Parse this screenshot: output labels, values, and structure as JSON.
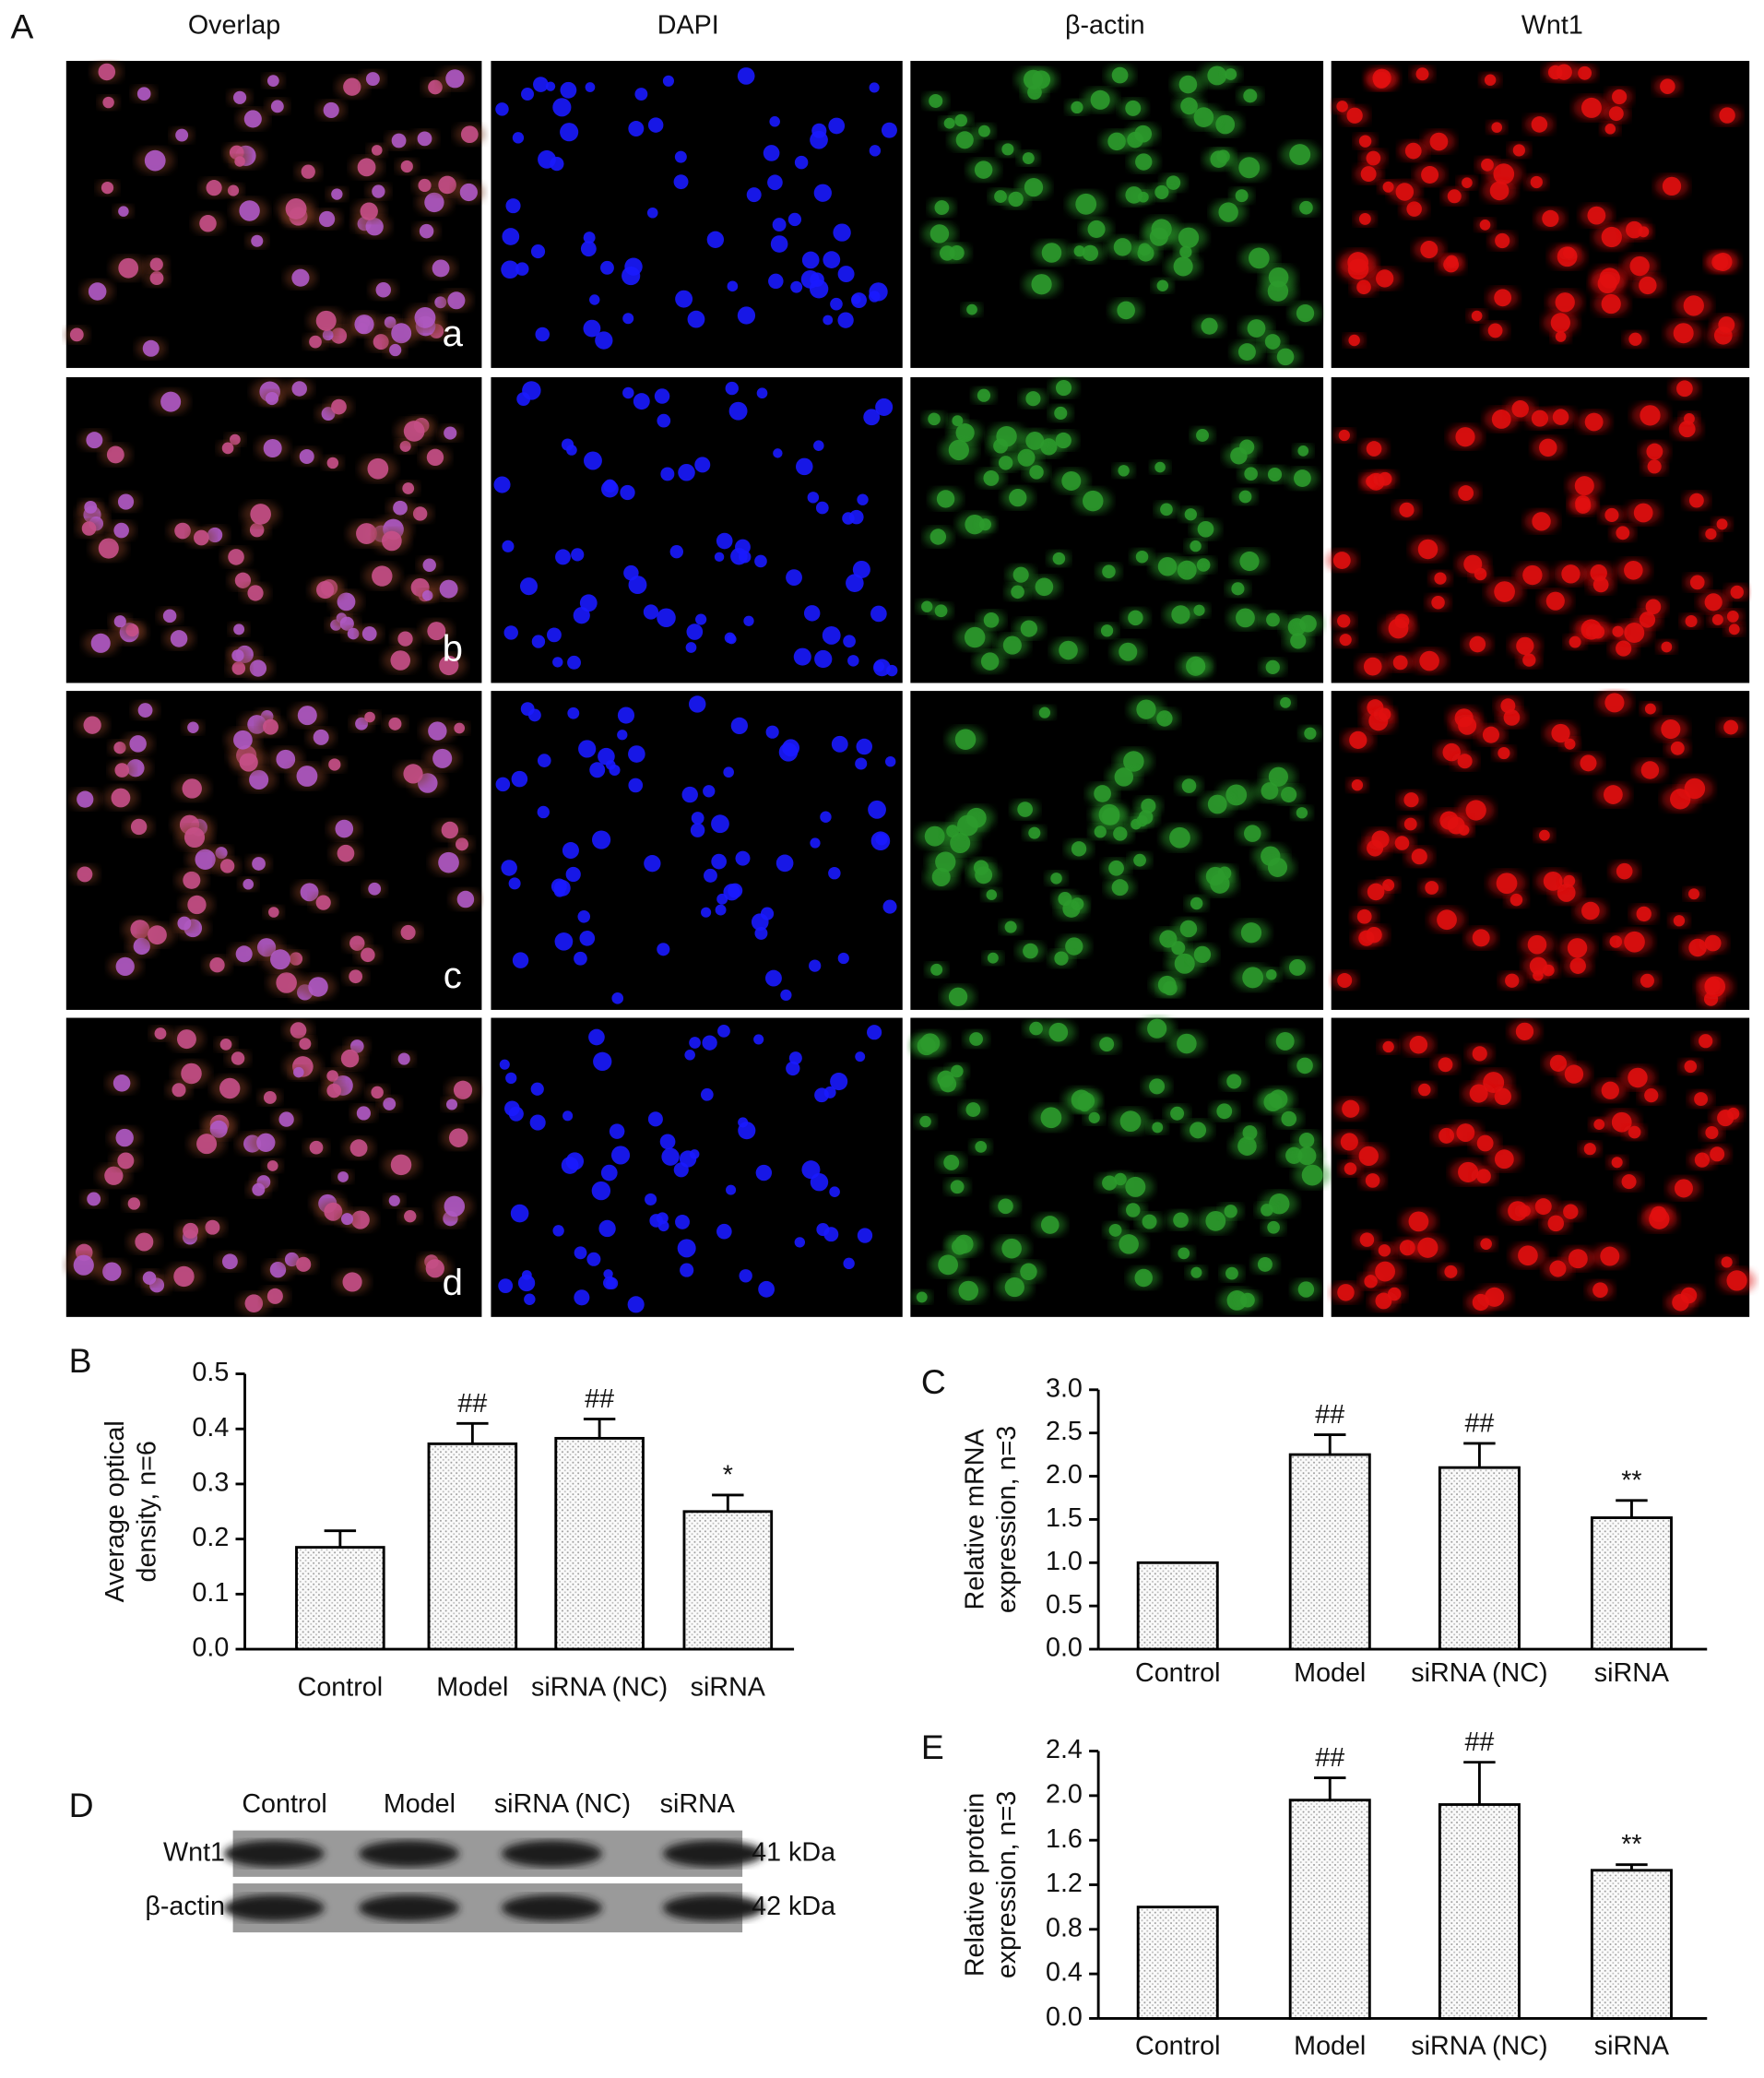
{
  "figure": {
    "label": "A",
    "columns": [
      "Overlap",
      "DAPI",
      "β-actin",
      "Wnt1"
    ],
    "rows": [
      "a",
      "b",
      "c",
      "d"
    ]
  },
  "blot": {
    "label": "D",
    "lanes": [
      "Control",
      "Model",
      "siRNA (NC)",
      "siRNA"
    ],
    "bands": [
      {
        "name": "Wnt1",
        "size": "41 kDa"
      },
      {
        "name": "β-actin",
        "size": "42 kDa"
      }
    ]
  },
  "chart_data": [
    {
      "type": "bar",
      "label": "B",
      "y_label": [
        "Average optical",
        "density, n=6"
      ],
      "categories": [
        "Control",
        "Model",
        "siRNA (NC)",
        "siRNA"
      ],
      "values": [
        0.185,
        0.373,
        0.383,
        0.25
      ],
      "errors": [
        0.03,
        0.037,
        0.035,
        0.03
      ],
      "annotations": [
        null,
        "##",
        "##",
        "*"
      ],
      "ylim": [
        0,
        0.5
      ],
      "yticks": [
        {
          "value": 0,
          "label": "0.0"
        },
        0.1,
        0.2,
        0.3,
        0.4,
        0.5
      ]
    },
    {
      "type": "bar",
      "label": "C",
      "y_label": [
        "Relative mRNA",
        "expression, n=3"
      ],
      "categories": [
        "Control",
        "Model",
        "siRNA (NC)",
        "siRNA"
      ],
      "values": [
        1.0,
        2.25,
        2.1,
        1.52
      ],
      "errors": [
        null,
        0.23,
        0.28,
        0.2
      ],
      "annotations": [
        null,
        "##",
        "##",
        "**"
      ],
      "ylim": [
        0,
        3
      ],
      "yticks": [
        {
          "value": 0,
          "label": "0.0"
        },
        0.5,
        {
          "value": 1,
          "label": "1.0"
        },
        1.5,
        {
          "value": 2,
          "label": "2.0"
        },
        2.5,
        {
          "value": 3,
          "label": "3.0"
        }
      ]
    },
    {
      "type": "bar",
      "label": "E",
      "y_label": [
        "Relative protein",
        "expression, n=3"
      ],
      "categories": [
        "Control",
        "Model",
        "siRNA (NC)",
        "siRNA"
      ],
      "values": [
        1.0,
        1.96,
        1.92,
        1.33
      ],
      "errors": [
        null,
        0.2,
        0.38,
        0.05
      ],
      "annotations": [
        null,
        "##",
        "##",
        "**"
      ],
      "ylim": [
        0,
        2.4
      ],
      "yticks": [
        {
          "value": 0,
          "label": "0.0"
        },
        0.4,
        0.8,
        1.2,
        1.6,
        {
          "value": 2,
          "label": "2.0"
        },
        2.4
      ]
    }
  ]
}
